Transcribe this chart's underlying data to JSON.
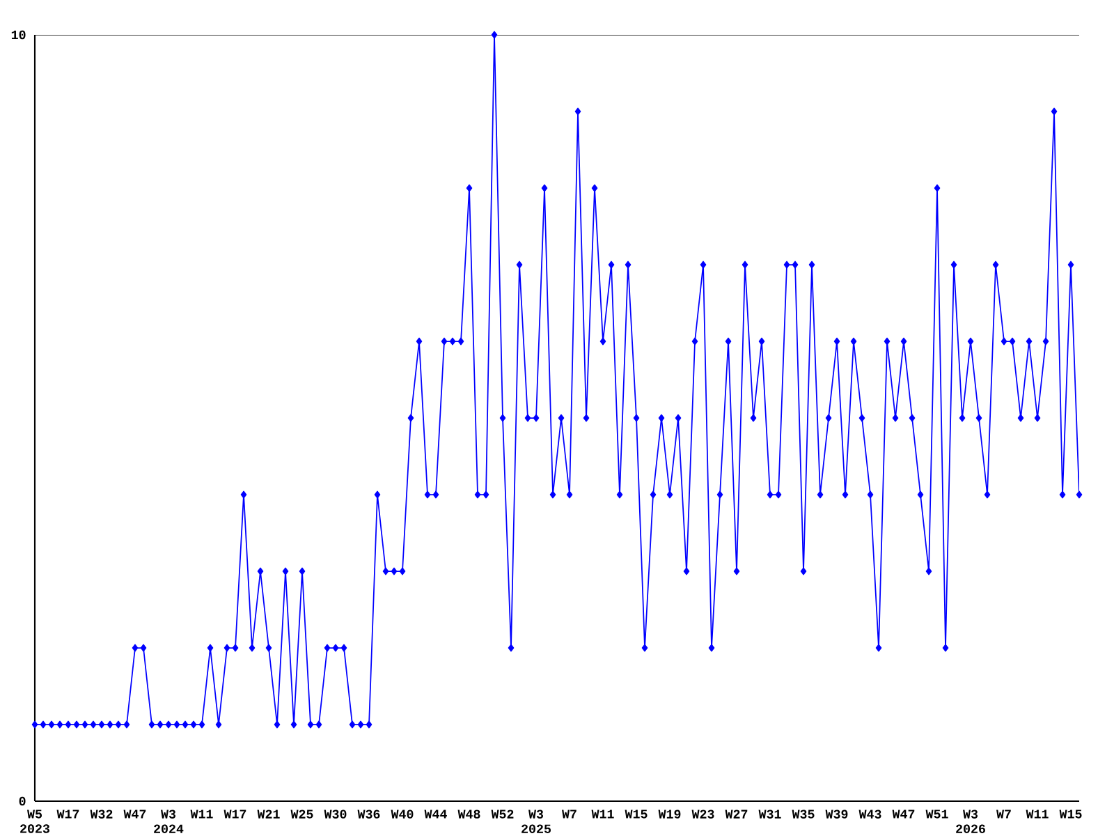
{
  "chart_data": {
    "type": "line",
    "categories": [
      "W5 2023",
      null,
      null,
      null,
      "W17",
      null,
      null,
      null,
      "W32",
      null,
      null,
      null,
      "W47",
      null,
      null,
      null,
      "W3 2024",
      null,
      null,
      null,
      "W11",
      null,
      null,
      null,
      "W17",
      null,
      null,
      null,
      "W21",
      null,
      null,
      null,
      "W25",
      null,
      null,
      null,
      "W30",
      null,
      null,
      null,
      "W36",
      null,
      null,
      null,
      "W40",
      null,
      null,
      null,
      "W44",
      null,
      null,
      null,
      "W48",
      null,
      null,
      null,
      "W52",
      null,
      null,
      null,
      "W3 2025",
      null,
      null,
      null,
      "W7",
      null,
      null,
      null,
      "W11",
      null,
      null,
      null,
      "W15",
      null,
      null,
      null,
      "W19",
      null,
      null,
      null,
      "W23",
      null,
      null,
      null,
      "W27",
      null,
      null,
      null,
      "W31",
      null,
      null,
      null,
      "W35",
      null,
      null,
      null,
      "W39",
      null,
      null,
      null,
      "W43",
      null,
      null,
      null,
      "W47",
      null,
      null,
      null,
      "W51",
      null,
      null,
      null,
      "W3 2026",
      null,
      null,
      null,
      "W7",
      null,
      null,
      null,
      "W11",
      null,
      null,
      null,
      "W15",
      null
    ],
    "series": [
      {
        "color": "#0000ff",
        "values": [
          1,
          1,
          1,
          1,
          1,
          1,
          1,
          1,
          1,
          1,
          1,
          1,
          2,
          2,
          1,
          1,
          1,
          1,
          1,
          1,
          1,
          2,
          1,
          2,
          2,
          4,
          2,
          3,
          2,
          1,
          3,
          1,
          3,
          1,
          1,
          2,
          2,
          2,
          1,
          1,
          1,
          4,
          3,
          3,
          3,
          5,
          6,
          4,
          4,
          6,
          6,
          6,
          8,
          4,
          4,
          10,
          5,
          2,
          7,
          5,
          5,
          8,
          4,
          5,
          4,
          9,
          5,
          8,
          6,
          7,
          4,
          7,
          5,
          2,
          4,
          5,
          4,
          5,
          3,
          6,
          7,
          2,
          4,
          6,
          3,
          7,
          5,
          6,
          4,
          4,
          7,
          7,
          3,
          7,
          4,
          5,
          6,
          4,
          6,
          5,
          4,
          2,
          6,
          5,
          6,
          5,
          4,
          3,
          8,
          2,
          7,
          5,
          6,
          5,
          4,
          7,
          6,
          6,
          5,
          6,
          5,
          6,
          9,
          4,
          7,
          4
        ]
      }
    ],
    "ylim": [
      0,
      10
    ],
    "yticks": [
      0,
      10
    ],
    "marker": "diamond",
    "line_style": "solid"
  }
}
